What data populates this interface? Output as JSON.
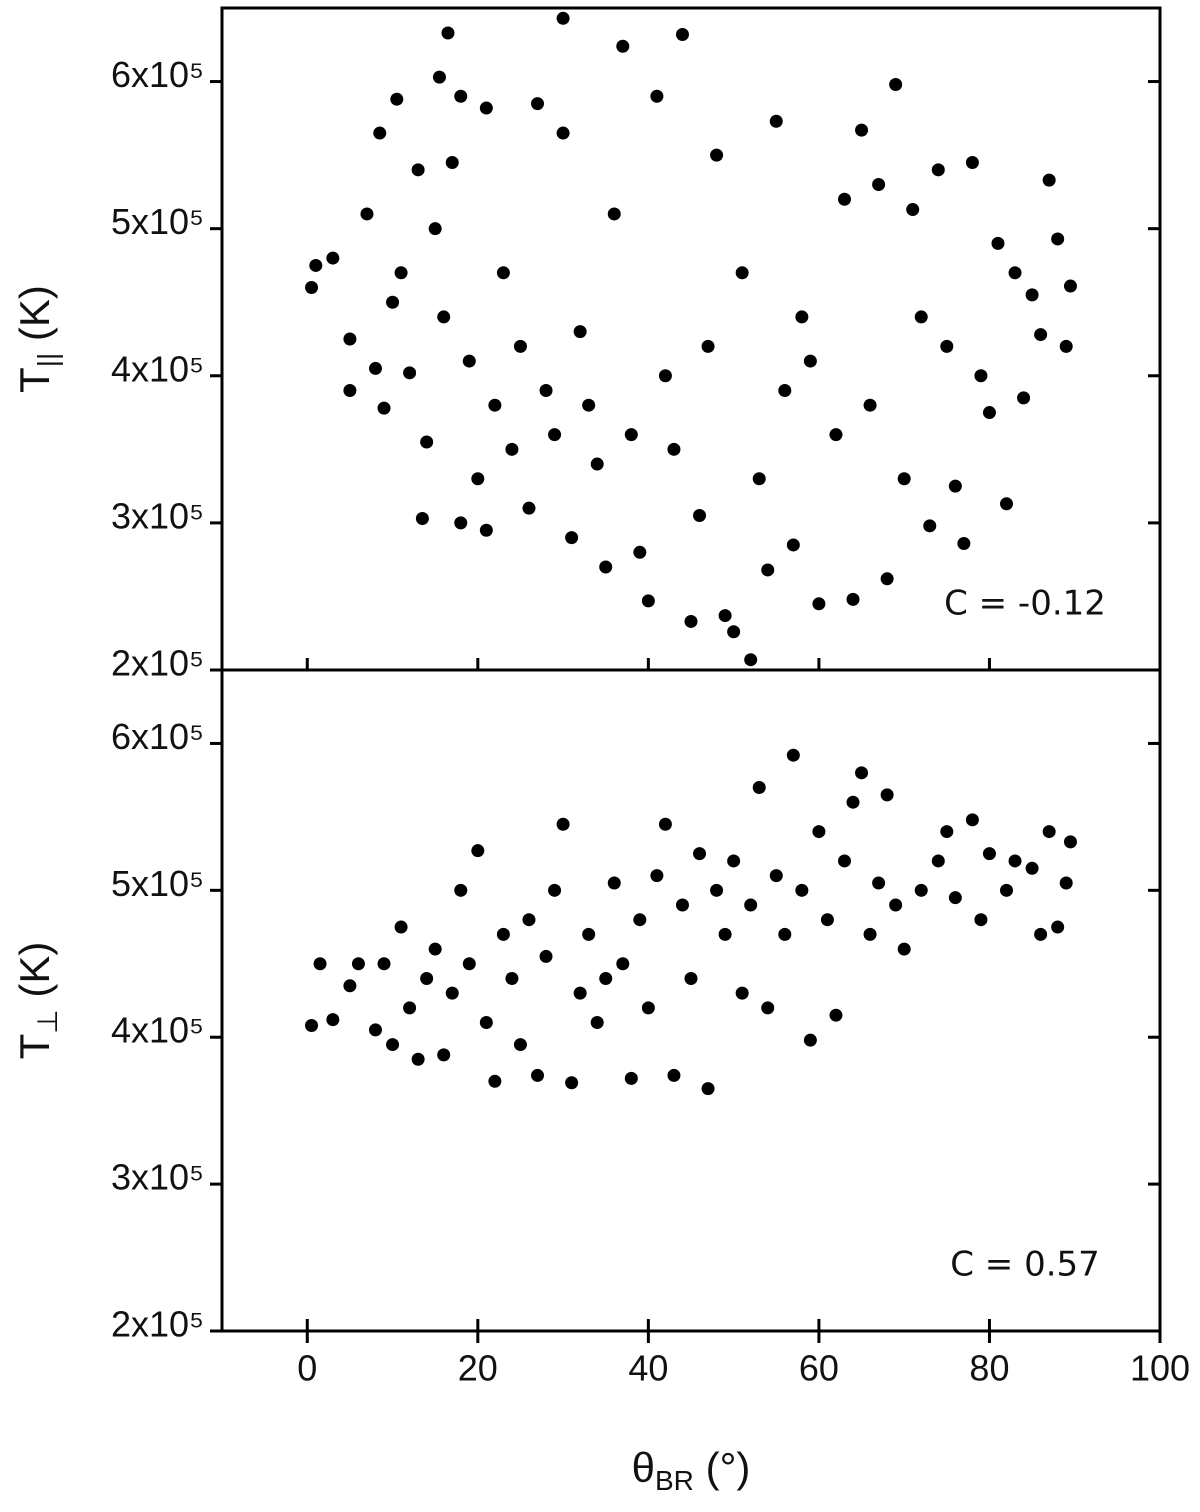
{
  "chart_data": [
    {
      "type": "scatter",
      "ylabel": {
        "text": "T",
        "sub": "||",
        "unit": "(K)"
      },
      "annotation": "C = -0.12",
      "xlim": [
        -10,
        100
      ],
      "ylim": [
        200000,
        650000
      ],
      "yticks": [
        {
          "value": 200000,
          "label": "2x10⁵"
        },
        {
          "value": 300000,
          "label": "3x10⁵"
        },
        {
          "value": 400000,
          "label": "4x10⁵"
        },
        {
          "value": 500000,
          "label": "5x10⁵"
        },
        {
          "value": 600000,
          "label": "6x10⁵"
        }
      ],
      "series": [
        {
          "color": "#000000",
          "x": [
            0.5,
            1,
            3,
            5,
            5,
            7,
            8,
            8.5,
            9,
            10,
            10.5,
            11,
            12,
            13,
            13.5,
            14,
            15,
            15.5,
            16,
            16.5,
            17,
            18,
            18,
            19,
            20,
            21,
            21,
            22,
            23,
            24,
            25,
            26,
            27,
            28,
            29,
            30,
            30,
            31,
            32,
            33,
            34,
            35,
            36,
            37,
            38,
            39,
            40,
            41,
            42,
            43,
            44,
            45,
            46,
            47,
            48,
            49,
            50,
            51,
            52,
            53,
            54,
            55,
            56,
            57,
            58,
            59,
            60,
            62,
            63,
            64,
            65,
            66,
            67,
            68,
            69,
            70,
            71,
            72,
            73,
            74,
            75,
            76,
            77,
            78,
            79,
            80,
            81,
            82,
            83,
            84,
            85,
            86,
            87,
            88,
            89,
            89.5
          ],
          "values": [
            460000,
            475000,
            480000,
            425000,
            390000,
            510000,
            405000,
            565000,
            378000,
            450000,
            588000,
            470000,
            402000,
            540000,
            303000,
            355000,
            500000,
            603000,
            440000,
            633000,
            545000,
            300000,
            590000,
            410000,
            330000,
            295000,
            582000,
            380000,
            470000,
            350000,
            420000,
            310000,
            585000,
            390000,
            360000,
            643000,
            565000,
            290000,
            430000,
            380000,
            340000,
            270000,
            510000,
            624000,
            360000,
            280000,
            247000,
            590000,
            400000,
            350000,
            632000,
            233000,
            305000,
            420000,
            550000,
            237000,
            226000,
            470000,
            207000,
            330000,
            268000,
            573000,
            390000,
            285000,
            440000,
            410000,
            245000,
            360000,
            520000,
            248000,
            567000,
            380000,
            530000,
            262000,
            598000,
            330000,
            513000,
            440000,
            298000,
            540000,
            420000,
            325000,
            286000,
            545000,
            400000,
            375000,
            490000,
            313000,
            470000,
            385000,
            455000,
            428000,
            533000,
            493000,
            420000,
            461000
          ]
        }
      ]
    },
    {
      "type": "scatter",
      "ylabel": {
        "text": "T",
        "sub": "⊥",
        "unit": "(K)"
      },
      "xlabel": {
        "text": "θ",
        "sub": "BR",
        "unit": "(°)"
      },
      "annotation": "C = 0.57",
      "xlim": [
        -10,
        100
      ],
      "ylim": [
        200000,
        650000
      ],
      "xticks": [
        0,
        20,
        40,
        60,
        80,
        100
      ],
      "yticks": [
        {
          "value": 200000,
          "label": "2x10⁵"
        },
        {
          "value": 300000,
          "label": "3x10⁵"
        },
        {
          "value": 400000,
          "label": "4x10⁵"
        },
        {
          "value": 500000,
          "label": "5x10⁵"
        },
        {
          "value": 600000,
          "label": "6x10⁵"
        }
      ],
      "series": [
        {
          "color": "#000000",
          "x": [
            0.5,
            1.5,
            3,
            5,
            6,
            8,
            9,
            10,
            11,
            12,
            13,
            14,
            15,
            16,
            17,
            18,
            19,
            20,
            21,
            22,
            23,
            24,
            25,
            26,
            27,
            28,
            29,
            30,
            31,
            32,
            33,
            34,
            35,
            36,
            37,
            38,
            39,
            40,
            41,
            42,
            43,
            44,
            45,
            46,
            47,
            48,
            49,
            50,
            51,
            52,
            53,
            54,
            55,
            56,
            57,
            58,
            59,
            60,
            61,
            62,
            63,
            64,
            65,
            66,
            67,
            68,
            69,
            70,
            72,
            74,
            75,
            76,
            78,
            79,
            80,
            82,
            83,
            85,
            86,
            87,
            88,
            89,
            89.5
          ],
          "values": [
            408000,
            450000,
            412000,
            435000,
            450000,
            405000,
            450000,
            395000,
            475000,
            420000,
            385000,
            440000,
            460000,
            388000,
            430000,
            500000,
            450000,
            527000,
            410000,
            370000,
            470000,
            440000,
            395000,
            480000,
            374000,
            455000,
            500000,
            545000,
            369000,
            430000,
            470000,
            410000,
            440000,
            505000,
            450000,
            372000,
            480000,
            420000,
            510000,
            545000,
            374000,
            490000,
            440000,
            525000,
            365000,
            500000,
            470000,
            520000,
            430000,
            490000,
            570000,
            420000,
            510000,
            470000,
            592000,
            500000,
            398000,
            540000,
            480000,
            415000,
            520000,
            560000,
            580000,
            470000,
            505000,
            565000,
            490000,
            460000,
            500000,
            520000,
            540000,
            495000,
            548000,
            480000,
            525000,
            500000,
            520000,
            515000,
            470000,
            540000,
            475000,
            505000,
            533000
          ]
        }
      ]
    }
  ]
}
